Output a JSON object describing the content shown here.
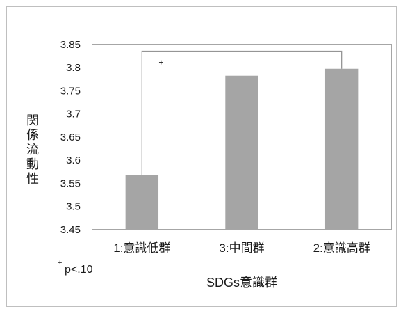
{
  "chart_data": {
    "type": "bar",
    "categories": [
      "1:意識低群",
      "3:中間群",
      "2:意識高群"
    ],
    "values": [
      3.568,
      3.782,
      3.797
    ],
    "xlabel": "SDGs意識群",
    "ylabel": "関係流動性",
    "ylim": [
      3.45,
      3.85
    ],
    "yticks": [
      "3.45",
      "3.5",
      "3.55",
      "3.6",
      "3.65",
      "3.7",
      "3.75",
      "3.8",
      "3.85"
    ],
    "grid": false,
    "bar_color": "#a5a5a5",
    "significance_brackets": [
      {
        "between": [
          0,
          2
        ],
        "label": "+"
      }
    ],
    "footnote": {
      "symbol": "+",
      "text": "p<.10"
    }
  }
}
